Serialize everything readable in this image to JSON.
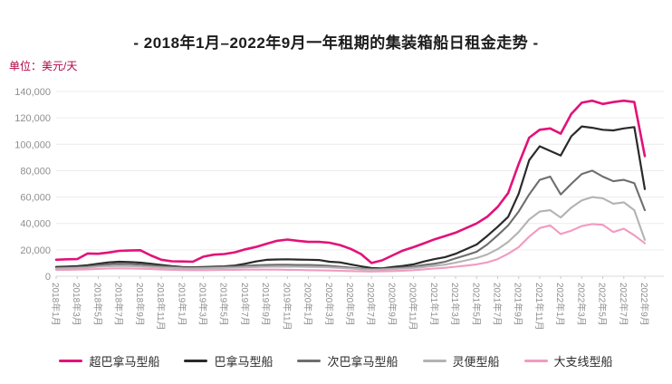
{
  "chart_data": {
    "type": "line",
    "title": "- 2018年1月–2022年9月一年租期的集装箱船日租金走势 -",
    "unit_label": "单位：美元/天",
    "ylabel": "美元/天",
    "xlabel": "",
    "ylim": [
      0,
      140000
    ],
    "y_ticks": [
      0,
      20000,
      40000,
      60000,
      80000,
      100000,
      120000,
      140000
    ],
    "grid": "horizontal",
    "legend_position": "bottom",
    "x_tick_labels": [
      "2018年1月",
      "2018年3月",
      "2018年5月",
      "2018年7月",
      "2018年9月",
      "2018年11月",
      "2019年1月",
      "2019年3月",
      "2019年5月",
      "2019年7月",
      "2019年9月",
      "2019年11月",
      "2020年1月",
      "2020年3月",
      "2020年5月",
      "2020年7月",
      "2020年9月",
      "2020年11月",
      "2021年1月",
      "2021年3月",
      "2021年5月",
      "2021年7月",
      "2021年9月",
      "2021年11月",
      "2022年1月",
      "2022年3月",
      "2022年5月",
      "2022年7月",
      "2022年9月"
    ],
    "x_months_all": [
      "2018-01",
      "2018-02",
      "2018-03",
      "2018-04",
      "2018-05",
      "2018-06",
      "2018-07",
      "2018-08",
      "2018-09",
      "2018-10",
      "2018-11",
      "2018-12",
      "2019-01",
      "2019-02",
      "2019-03",
      "2019-04",
      "2019-05",
      "2019-06",
      "2019-07",
      "2019-08",
      "2019-09",
      "2019-10",
      "2019-11",
      "2019-12",
      "2020-01",
      "2020-02",
      "2020-03",
      "2020-04",
      "2020-05",
      "2020-06",
      "2020-07",
      "2020-08",
      "2020-09",
      "2020-10",
      "2020-11",
      "2020-12",
      "2021-01",
      "2021-02",
      "2021-03",
      "2021-04",
      "2021-05",
      "2021-06",
      "2021-07",
      "2021-08",
      "2021-09",
      "2021-10",
      "2021-11",
      "2021-12",
      "2022-01",
      "2022-02",
      "2022-03",
      "2022-04",
      "2022-05",
      "2022-06",
      "2022-07",
      "2022-08",
      "2022-09"
    ],
    "series": [
      {
        "name": "超巴拿马型船",
        "color": "#e2127a",
        "line_width": 2.6,
        "values": [
          12500,
          12800,
          13000,
          17200,
          17000,
          18000,
          19200,
          19500,
          19700,
          15800,
          12500,
          11300,
          11200,
          11000,
          14800,
          16300,
          16800,
          18100,
          20400,
          22200,
          24500,
          26800,
          27800,
          26800,
          26000,
          26000,
          25400,
          23600,
          20800,
          16800,
          10000,
          12000,
          15800,
          19500,
          22000,
          25000,
          28000,
          30500,
          33000,
          36500,
          40000,
          45000,
          52500,
          63000,
          85000,
          105000,
          111000,
          112000,
          108000,
          123000,
          131500,
          133000,
          130500,
          132000,
          133000,
          132000,
          91000
        ]
      },
      {
        "name": "巴拿马型船",
        "color": "#2a2a2a",
        "line_width": 2.2,
        "values": [
          7100,
          7300,
          7600,
          8300,
          9500,
          10500,
          11000,
          10800,
          10300,
          9500,
          8500,
          7600,
          7000,
          6800,
          7000,
          7200,
          7500,
          8100,
          9500,
          11200,
          12400,
          12700,
          12800,
          12600,
          12500,
          12300,
          11000,
          10500,
          9000,
          7500,
          6200,
          6000,
          7000,
          7800,
          9000,
          11200,
          13000,
          14500,
          17000,
          20500,
          24000,
          30500,
          37500,
          45000,
          62500,
          88000,
          98500,
          95000,
          91500,
          106000,
          113500,
          112500,
          111000,
          110500,
          112000,
          113000,
          66000
        ]
      },
      {
        "name": "次巴拿马型船",
        "color": "#6e6e6e",
        "line_width": 2.1,
        "values": [
          6300,
          6500,
          6800,
          7300,
          8300,
          9000,
          9400,
          9200,
          8800,
          8200,
          7500,
          7000,
          6600,
          6400,
          6500,
          6700,
          7000,
          7300,
          7800,
          8300,
          8600,
          8700,
          8700,
          8600,
          8500,
          8300,
          7800,
          7200,
          6500,
          5800,
          5300,
          5500,
          6000,
          6600,
          7300,
          8500,
          9500,
          11000,
          13500,
          16000,
          18500,
          24000,
          31000,
          38500,
          49000,
          62000,
          73000,
          75500,
          62000,
          70000,
          77500,
          80000,
          75500,
          72000,
          73000,
          70500,
          50000
        ]
      },
      {
        "name": "灵便型船",
        "color": "#b3b3b3",
        "line_width": 2.1,
        "values": [
          5800,
          6000,
          6200,
          6600,
          7200,
          7600,
          7800,
          7700,
          7400,
          7000,
          6600,
          6300,
          6000,
          5900,
          6000,
          6100,
          6300,
          6500,
          6800,
          7000,
          7200,
          7300,
          7300,
          7200,
          7100,
          7000,
          6700,
          6300,
          5800,
          5300,
          5000,
          5100,
          5400,
          5800,
          6300,
          7000,
          7800,
          8800,
          10300,
          12000,
          13800,
          16500,
          20500,
          26000,
          33500,
          43000,
          49000,
          50000,
          44500,
          52000,
          57500,
          60000,
          59000,
          55000,
          56000,
          50000,
          27500
        ]
      },
      {
        "name": "大支线型船",
        "color": "#f29ac0",
        "line_width": 2.1,
        "values": [
          4800,
          4900,
          5000,
          5200,
          5500,
          5800,
          6000,
          5900,
          5700,
          5400,
          5100,
          4900,
          4700,
          4600,
          4600,
          4700,
          4800,
          4900,
          5000,
          5000,
          5000,
          5000,
          4900,
          4800,
          4600,
          4500,
          4300,
          4100,
          3900,
          3700,
          3600,
          3700,
          3900,
          4200,
          4600,
          5200,
          5800,
          6400,
          7200,
          8000,
          9000,
          10500,
          13000,
          17000,
          22000,
          30000,
          36500,
          38500,
          32000,
          34500,
          38000,
          39500,
          39000,
          33500,
          36000,
          31000,
          25000
        ]
      }
    ]
  },
  "colors": {
    "title_text": "#1c1c1c",
    "unit_text": "#b00646",
    "axis_text": "#8f8f8f",
    "gridline": "#ececec",
    "axis_line": "#d8d8d8",
    "tick_mark": "#c9c9c9"
  }
}
